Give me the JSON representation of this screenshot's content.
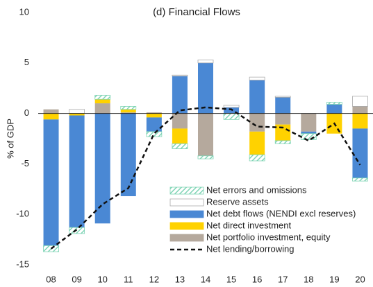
{
  "chart_data": {
    "type": "bar",
    "title": "(d) Financial Flows",
    "y_label": "% of GDP",
    "categories": [
      "08",
      "09",
      "10",
      "11",
      "12",
      "13",
      "14",
      "15",
      "16",
      "17",
      "18",
      "19",
      "20"
    ],
    "stacked": true,
    "ylim": [
      -15,
      10
    ],
    "yticks": [
      -15,
      -10,
      -5,
      0,
      5,
      10
    ],
    "series": [
      {
        "name": "Net errors and omissions",
        "color": "#7fd4b5",
        "fill": "hatch",
        "values": [
          -0.6,
          -0.6,
          0.4,
          0.3,
          -0.5,
          -0.5,
          -0.3,
          -0.6,
          -0.6,
          -0.3,
          -0.6,
          0.2,
          -0.3
        ]
      },
      {
        "name": "Reserve assets",
        "color": "#ffffff",
        "values": [
          0,
          0.4,
          0,
          0,
          0,
          0.1,
          0.3,
          0.2,
          0.3,
          0.1,
          0,
          0,
          1.0
        ]
      },
      {
        "name": "Net debt flows (NENDI excl reserves)",
        "color": "#4a88d4",
        "values": [
          -12.5,
          -11.1,
          -10.9,
          -8.2,
          -1.4,
          3.7,
          5.0,
          0.6,
          3.3,
          1.6,
          -0.2,
          0.9,
          -4.9
        ]
      },
      {
        "name": "Net direct investment",
        "color": "#ffd200",
        "values": [
          -0.6,
          -0.2,
          0.4,
          0.3,
          -0.4,
          -1.5,
          0,
          0,
          -2.3,
          -1.6,
          0,
          -2.0,
          -1.5
        ]
      },
      {
        "name": "Net portfolio investment, equity",
        "color": "#b5a99d",
        "values": [
          0.4,
          0,
          1.0,
          0.1,
          0.1,
          -1.5,
          -4.2,
          0,
          -1.8,
          -1.1,
          -1.8,
          0,
          0.7
        ]
      },
      {
        "name": "Net lending/borrowing",
        "type": "line",
        "color": "#111111",
        "dashed": true,
        "values": [
          -13.4,
          -11.5,
          -9.0,
          -7.4,
          -2.0,
          0.3,
          0.6,
          0.4,
          -1.3,
          -1.4,
          -2.7,
          -1.0,
          -5.1
        ]
      }
    ]
  }
}
